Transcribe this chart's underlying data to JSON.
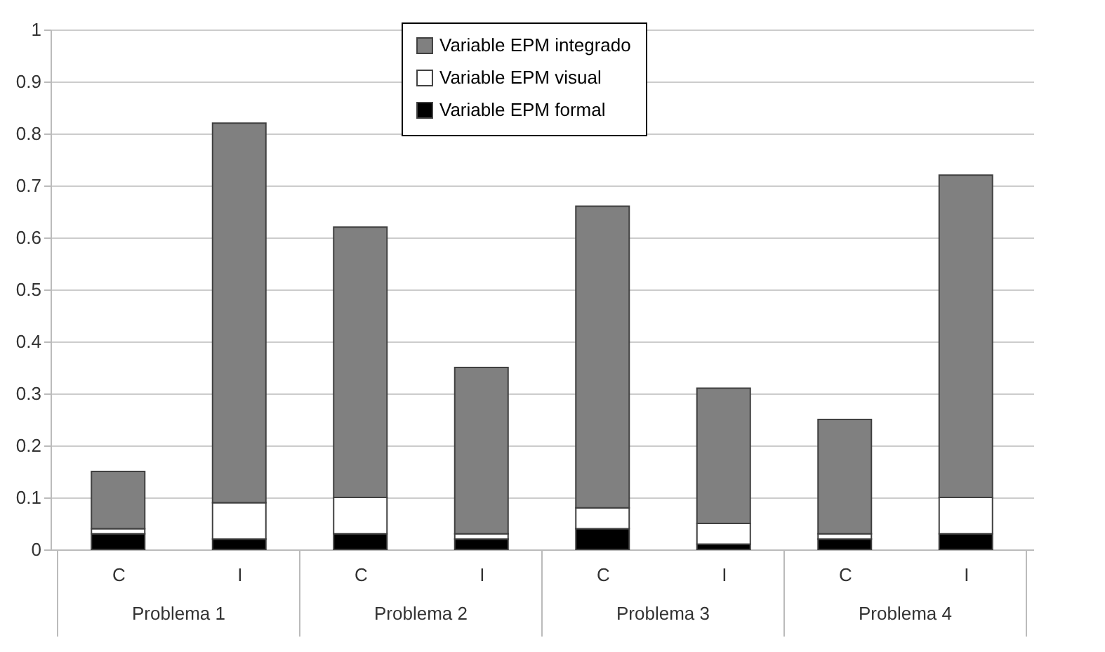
{
  "chart_data": {
    "type": "bar",
    "stacked": true,
    "categories": [
      "C",
      "I",
      "C",
      "I",
      "C",
      "I",
      "C",
      "I"
    ],
    "series": [
      {
        "name": "Variable EPM formal",
        "color": "#000000",
        "values": [
          0.03,
          0.02,
          0.03,
          0.02,
          0.04,
          0.01,
          0.02,
          0.03
        ]
      },
      {
        "name": "Variable EPM visual",
        "color": "#ffffff",
        "values": [
          0.01,
          0.07,
          0.07,
          0.01,
          0.04,
          0.04,
          0.01,
          0.07
        ]
      },
      {
        "name": "Variable EPM integrado",
        "color": "#808080",
        "values": [
          0.11,
          0.73,
          0.52,
          0.32,
          0.58,
          0.26,
          0.22,
          0.62
        ]
      }
    ],
    "annotations": [
      "Problema 1",
      "Problema 2",
      "Problema 3",
      "Problema 4"
    ],
    "ylim": [
      0,
      1
    ],
    "yticks": [
      0,
      0.1,
      0.2,
      0.3,
      0.4,
      0.5,
      0.6,
      0.7,
      0.8,
      0.9,
      1
    ],
    "grid": "y",
    "legend": "top"
  }
}
